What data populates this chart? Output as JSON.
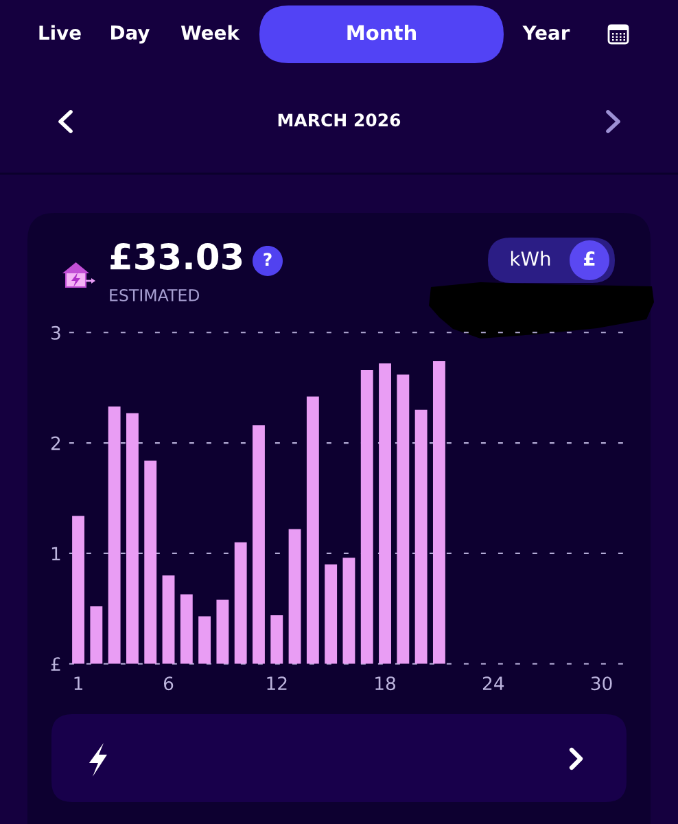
{
  "chart_data": {
    "type": "bar",
    "title": "£33.03",
    "subtitle": "ESTIMATED",
    "annotations": [
      "Live",
      "Day",
      "Week",
      "Month",
      "Year",
      "MARCH 2026",
      "?",
      "kWh",
      "£"
    ],
    "x": [
      1,
      2,
      3,
      4,
      5,
      6,
      7,
      8,
      9,
      10,
      11,
      12,
      13,
      14,
      15,
      16,
      17,
      18,
      19,
      20,
      21
    ],
    "values": [
      1.34,
      0.52,
      2.33,
      2.27,
      1.84,
      0.8,
      0.63,
      0.43,
      0.58,
      1.1,
      2.16,
      0.44,
      1.22,
      2.42,
      0.9,
      0.96,
      2.66,
      2.72,
      2.62,
      2.3,
      2.74
    ],
    "color": "#e99df4",
    "xlim": [
      0.5,
      31.5
    ],
    "xticks": [
      1,
      6,
      12,
      18,
      24,
      30
    ],
    "ylim": [
      0,
      3
    ],
    "yticks": [
      {
        "value": 0,
        "label": "£"
      },
      1,
      2,
      3
    ],
    "grid": "y"
  }
}
